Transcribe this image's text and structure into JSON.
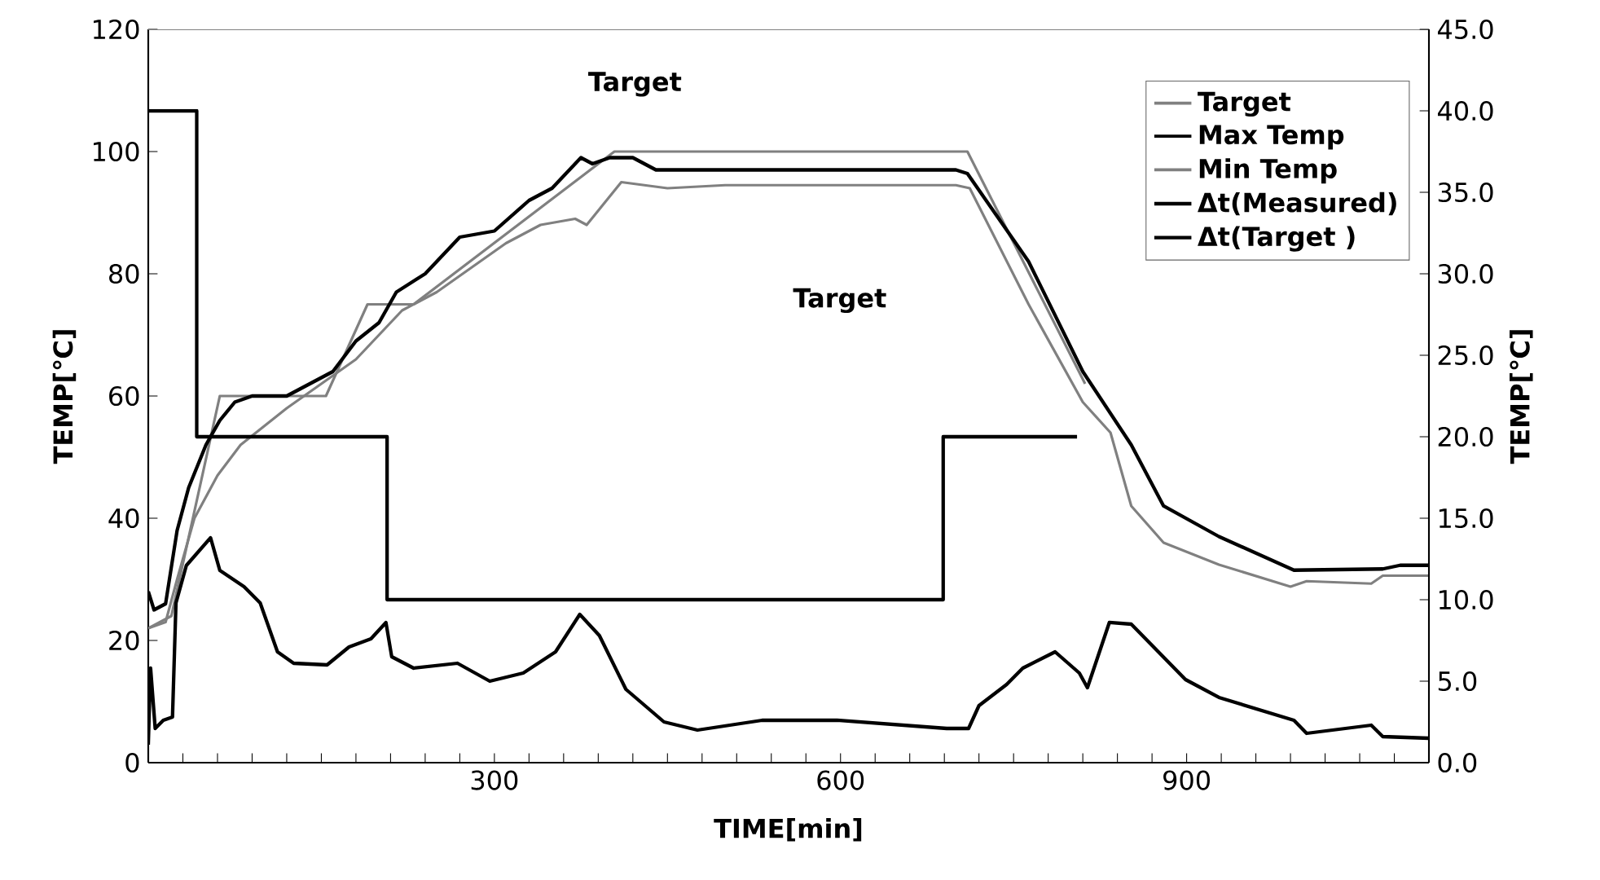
{
  "chart_data": {
    "type": "line",
    "xlabel": "TIME[min]",
    "ylabel": "TEMP[℃]",
    "y2label": "TEMP[℃]",
    "xlim": [
      0,
      1110
    ],
    "ylim": [
      0,
      120
    ],
    "y2lim": [
      0,
      45
    ],
    "xticks": [
      {
        "value": 30,
        "label": null
      },
      {
        "value": 60,
        "label": null
      },
      {
        "value": 90,
        "label": null
      },
      {
        "value": 120,
        "label": null
      },
      {
        "value": 150,
        "label": null
      },
      {
        "value": 180,
        "label": null
      },
      {
        "value": 210,
        "label": null
      },
      {
        "value": 240,
        "label": null
      },
      {
        "value": 270,
        "label": null
      },
      300,
      {
        "value": 330,
        "label": null
      },
      {
        "value": 360,
        "label": null
      },
      {
        "value": 390,
        "label": null
      },
      {
        "value": 420,
        "label": null
      },
      {
        "value": 450,
        "label": null
      },
      {
        "value": 480,
        "label": null
      },
      {
        "value": 510,
        "label": null
      },
      {
        "value": 540,
        "label": null
      },
      {
        "value": 570,
        "label": null
      },
      600,
      {
        "value": 630,
        "label": null
      },
      {
        "value": 660,
        "label": null
      },
      {
        "value": 690,
        "label": null
      },
      {
        "value": 720,
        "label": null
      },
      {
        "value": 750,
        "label": null
      },
      {
        "value": 780,
        "label": null
      },
      {
        "value": 810,
        "label": null
      },
      {
        "value": 840,
        "label": null
      },
      {
        "value": 870,
        "label": null
      },
      900,
      {
        "value": 930,
        "label": null
      },
      {
        "value": 960,
        "label": null
      },
      {
        "value": 990,
        "label": null
      },
      {
        "value": 1020,
        "label": null
      },
      {
        "value": 1050,
        "label": null
      },
      {
        "value": 1080,
        "label": null
      }
    ],
    "yticks": [
      0,
      20,
      40,
      60,
      80,
      100,
      120
    ],
    "y2ticks": [
      {
        "value": 0,
        "label": "0.0"
      },
      {
        "value": 5,
        "label": "5.0"
      },
      {
        "value": 10,
        "label": "10.0"
      },
      {
        "value": 15,
        "label": "15.0"
      },
      {
        "value": 20,
        "label": "20.0"
      },
      {
        "value": 25,
        "label": "25.0"
      },
      {
        "value": 30,
        "label": "30.0"
      },
      {
        "value": 35,
        "label": "35.0"
      },
      {
        "value": 40,
        "label": "40.0"
      },
      {
        "value": 45,
        "label": "45.0"
      }
    ],
    "legend": "top right",
    "grid": false,
    "marker": "none",
    "line_style": "solid",
    "annotations": [
      "Target",
      "Target"
    ],
    "series": [
      {
        "name": "Target",
        "color": "#808080",
        "x": [
          0,
          20,
          62,
          154,
          190,
          230,
          404,
          710,
          812
        ],
        "values": [
          22,
          24,
          60,
          60,
          75,
          75,
          100,
          100,
          62
        ]
      },
      {
        "name": "Max Temp",
        "color": "#000000",
        "x": [
          0,
          5,
          15,
          25,
          35,
          50,
          62,
          75,
          90,
          120,
          140,
          160,
          180,
          200,
          215,
          240,
          270,
          300,
          330,
          350,
          375,
          385,
          400,
          420,
          440,
          500,
          600,
          700,
          710,
          763,
          810,
          852,
          880,
          928,
          993,
          1070,
          1085,
          1110
        ],
        "values": [
          28,
          25,
          26,
          38,
          45,
          52,
          56,
          59,
          60,
          60,
          62,
          64,
          69,
          72,
          77,
          80,
          86,
          87,
          92,
          94,
          99,
          98,
          99,
          99,
          97,
          97,
          97,
          97,
          96.4,
          82,
          64,
          52,
          42,
          37,
          31.5,
          31.7,
          32.3,
          32.3
        ]
      },
      {
        "name": "Min Temp",
        "color": "#808080",
        "x": [
          0,
          15,
          25,
          40,
          60,
          80,
          100,
          120,
          150,
          180,
          200,
          220,
          250,
          280,
          310,
          340,
          370,
          380,
          410,
          450,
          500,
          600,
          700,
          712,
          763,
          810,
          834,
          852,
          880,
          928,
          990,
          1004,
          1060,
          1070,
          1110
        ],
        "values": [
          22,
          23,
          30,
          40,
          47,
          52,
          55,
          58,
          62,
          66,
          70,
          74,
          77,
          81,
          85,
          88,
          89,
          88,
          95,
          94,
          94.5,
          94.5,
          94.5,
          94,
          75,
          59,
          54,
          42,
          36,
          32.4,
          28.8,
          29.7,
          29.3,
          30.6,
          30.6
        ]
      },
      {
        "name": "Δt(Measured)",
        "color": "#000000",
        "axis": "y2",
        "x": [
          0,
          2,
          6,
          13,
          21,
          24,
          33,
          54,
          62,
          83,
          97,
          112,
          126,
          155,
          174,
          193,
          206,
          211,
          230,
          268,
          296,
          325,
          353,
          374,
          391,
          414,
          447,
          476,
          532,
          550,
          597,
          692,
          711,
          720,
          744,
          758,
          786,
          807,
          814,
          833,
          852,
          899,
          928,
          993,
          1004,
          1060,
          1070,
          1110
        ],
        "values": [
          1.1,
          5.8,
          2.1,
          2.6,
          2.8,
          9.8,
          12.1,
          13.8,
          11.8,
          10.8,
          9.8,
          6.8,
          6.1,
          6.0,
          7.1,
          7.6,
          8.6,
          6.5,
          5.8,
          6.1,
          5.0,
          5.5,
          6.8,
          9.1,
          7.8,
          4.5,
          2.5,
          2.0,
          2.6,
          2.6,
          2.6,
          2.1,
          2.1,
          3.5,
          4.8,
          5.8,
          6.8,
          5.5,
          4.6,
          8.6,
          8.5,
          5.1,
          4.0,
          2.6,
          1.8,
          2.3,
          1.6,
          1.5
        ]
      },
      {
        "name": "Δt(Target )",
        "color": "#000000",
        "axis": "y2",
        "x": [
          0,
          42,
          42,
          207,
          207,
          689,
          689,
          805
        ],
        "values": [
          40,
          40,
          20,
          20,
          10,
          10,
          20,
          20
        ]
      }
    ]
  }
}
